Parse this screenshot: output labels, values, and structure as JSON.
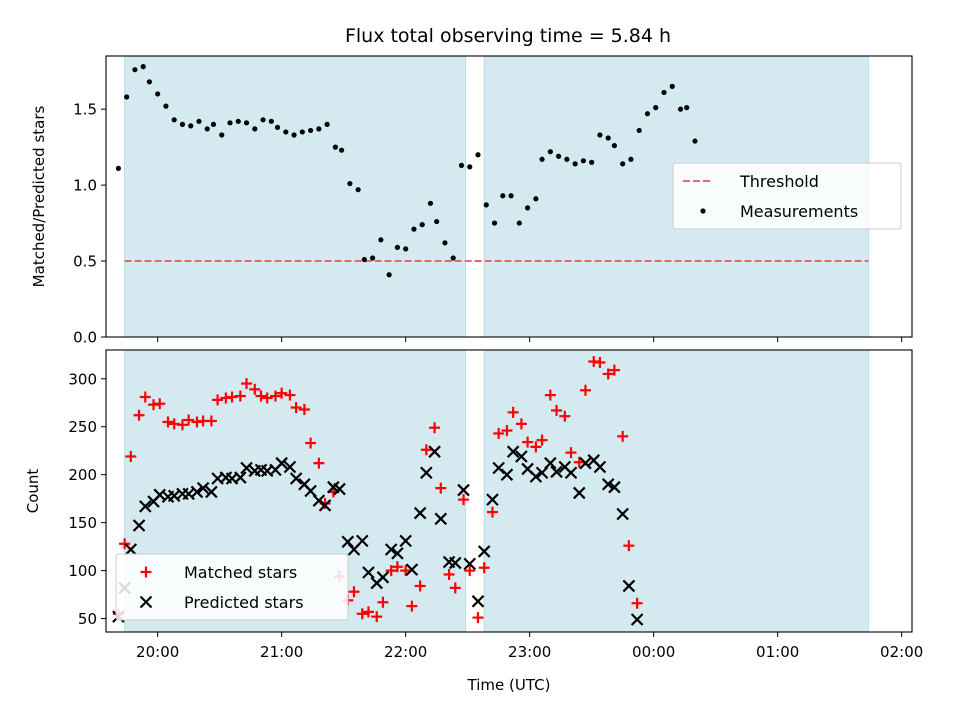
{
  "chart_data": [
    {
      "type": "scatter",
      "title": "Flux total observing time = 5.84 h",
      "xlabel": "",
      "ylabel": "Matched/Predicted stars",
      "xlim": [
        "19:35",
        "02:05"
      ],
      "ylim": [
        0,
        1.85
      ],
      "yticks": [
        0.0,
        0.5,
        1.0,
        1.5
      ],
      "ytick_labels": [
        "0.0",
        "0.5",
        "1.0",
        "1.5"
      ],
      "legend_position": "right",
      "shaded_intervals": [
        [
          "19:44",
          "22:29"
        ],
        [
          "22:38",
          "01:44"
        ]
      ],
      "threshold": {
        "name": "Threshold",
        "value": 0.5,
        "x_range": [
          "19:44",
          "01:44"
        ],
        "color": "#e8686a",
        "style": "dashed"
      },
      "series": [
        {
          "name": "Measurements",
          "color": "#000000",
          "marker": "dot",
          "points": [
            [
              "19:41",
              1.11
            ],
            [
              "19:45",
              1.58
            ],
            [
              "19:49",
              1.76
            ],
            [
              "19:53",
              1.78
            ],
            [
              "19:56",
              1.68
            ],
            [
              "20:00",
              1.6
            ],
            [
              "20:04",
              1.52
            ],
            [
              "20:08",
              1.43
            ],
            [
              "20:12",
              1.4
            ],
            [
              "20:16",
              1.39
            ],
            [
              "20:20",
              1.42
            ],
            [
              "20:24",
              1.37
            ],
            [
              "20:27",
              1.4
            ],
            [
              "20:31",
              1.33
            ],
            [
              "20:35",
              1.41
            ],
            [
              "20:39",
              1.42
            ],
            [
              "20:43",
              1.41
            ],
            [
              "20:47",
              1.37
            ],
            [
              "20:51",
              1.43
            ],
            [
              "20:55",
              1.42
            ],
            [
              "20:58",
              1.38
            ],
            [
              "21:02",
              1.35
            ],
            [
              "21:06",
              1.33
            ],
            [
              "21:10",
              1.35
            ],
            [
              "21:14",
              1.36
            ],
            [
              "21:18",
              1.37
            ],
            [
              "21:22",
              1.4
            ],
            [
              "21:26",
              1.25
            ],
            [
              "21:29",
              1.23
            ],
            [
              "21:33",
              1.01
            ],
            [
              "21:37",
              0.97
            ],
            [
              "21:40",
              0.51
            ],
            [
              "21:44",
              0.52
            ],
            [
              "21:48",
              0.64
            ],
            [
              "21:52",
              0.41
            ],
            [
              "21:56",
              0.59
            ],
            [
              "22:00",
              0.58
            ],
            [
              "22:04",
              0.71
            ],
            [
              "22:08",
              0.74
            ],
            [
              "22:12",
              0.88
            ],
            [
              "22:15",
              0.76
            ],
            [
              "22:19",
              0.62
            ],
            [
              "22:23",
              0.52
            ],
            [
              "22:27",
              1.13
            ],
            [
              "22:31",
              1.12
            ],
            [
              "22:35",
              1.2
            ],
            [
              "22:39",
              0.87
            ],
            [
              "22:43",
              0.75
            ],
            [
              "22:47",
              0.93
            ],
            [
              "22:51",
              0.93
            ],
            [
              "22:55",
              0.75
            ],
            [
              "22:59",
              0.85
            ],
            [
              "23:03",
              0.91
            ],
            [
              "23:06",
              1.17
            ],
            [
              "23:10",
              1.22
            ],
            [
              "23:14",
              1.19
            ],
            [
              "23:18",
              1.17
            ],
            [
              "23:22",
              1.14
            ],
            [
              "23:26",
              1.16
            ],
            [
              "23:30",
              1.15
            ],
            [
              "23:34",
              1.33
            ],
            [
              "23:38",
              1.31
            ],
            [
              "23:41",
              1.26
            ],
            [
              "23:45",
              1.14
            ],
            [
              "23:49",
              1.17
            ],
            [
              "23:53",
              1.36
            ],
            [
              "23:57",
              1.47
            ],
            [
              "00:01",
              1.51
            ],
            [
              "00:05",
              1.61
            ],
            [
              "00:09",
              1.65
            ],
            [
              "00:13",
              1.5
            ],
            [
              "00:16",
              1.51
            ],
            [
              "00:20",
              1.29
            ]
          ]
        }
      ]
    },
    {
      "type": "scatter",
      "title": "",
      "xlabel": "Time (UTC)",
      "ylabel": "Count",
      "xlim": [
        "19:35",
        "02:05"
      ],
      "ylim": [
        36,
        330
      ],
      "yticks": [
        50,
        100,
        150,
        200,
        250,
        300
      ],
      "ytick_labels": [
        "50",
        "100",
        "150",
        "200",
        "250",
        "300"
      ],
      "xticks": [
        "20:00",
        "21:00",
        "22:00",
        "23:00",
        "00:00",
        "01:00",
        "02:00"
      ],
      "legend_position": "lower left",
      "shaded_intervals": [
        [
          "19:44",
          "22:29"
        ],
        [
          "22:38",
          "01:44"
        ]
      ],
      "series": [
        {
          "name": "Matched stars",
          "color": "#ff0000",
          "marker": "plus",
          "points": [
            [
              "19:41",
              55
            ],
            [
              "19:44",
              128
            ],
            [
              "19:47",
              219
            ],
            [
              "19:51",
              262
            ],
            [
              "19:54",
              281
            ],
            [
              "19:58",
              273
            ],
            [
              "20:01",
              274
            ],
            [
              "20:05",
              255
            ],
            [
              "20:08",
              253
            ],
            [
              "20:12",
              252
            ],
            [
              "20:15",
              257
            ],
            [
              "20:19",
              255
            ],
            [
              "20:22",
              256
            ],
            [
              "20:26",
              256
            ],
            [
              "20:29",
              278
            ],
            [
              "20:33",
              280
            ],
            [
              "20:36",
              281
            ],
            [
              "20:40",
              282
            ],
            [
              "20:43",
              295
            ],
            [
              "20:47",
              289
            ],
            [
              "20:50",
              282
            ],
            [
              "20:53",
              280
            ],
            [
              "20:57",
              282
            ],
            [
              "21:00",
              285
            ],
            [
              "21:04",
              283
            ],
            [
              "21:07",
              270
            ],
            [
              "21:11",
              268
            ],
            [
              "21:14",
              233
            ],
            [
              "21:18",
              212
            ],
            [
              "21:21",
              170
            ],
            [
              "21:25",
              182
            ],
            [
              "21:28",
              94
            ],
            [
              "21:32",
              69
            ],
            [
              "21:35",
              78
            ],
            [
              "21:39",
              55
            ],
            [
              "21:42",
              57
            ],
            [
              "21:46",
              52
            ],
            [
              "21:49",
              67
            ],
            [
              "21:53",
              100
            ],
            [
              "21:56",
              104
            ],
            [
              "22:00",
              100
            ],
            [
              "22:03",
              63
            ],
            [
              "22:07",
              84
            ],
            [
              "22:10",
              226
            ],
            [
              "22:14",
              249
            ],
            [
              "22:17",
              186
            ],
            [
              "22:21",
              96
            ],
            [
              "22:24",
              82
            ],
            [
              "22:28",
              174
            ],
            [
              "22:31",
              100
            ],
            [
              "22:35",
              51
            ],
            [
              "22:38",
              103
            ],
            [
              "22:42",
              161
            ],
            [
              "22:45",
              243
            ],
            [
              "22:49",
              246
            ],
            [
              "22:52",
              265
            ],
            [
              "22:56",
              253
            ],
            [
              "22:59",
              234
            ],
            [
              "23:03",
              229
            ],
            [
              "23:06",
              236
            ],
            [
              "23:10",
              283
            ],
            [
              "23:13",
              267
            ],
            [
              "23:17",
              261
            ],
            [
              "23:20",
              223
            ],
            [
              "23:24",
              213
            ],
            [
              "23:27",
              288
            ],
            [
              "23:31",
              318
            ],
            [
              "23:34",
              317
            ],
            [
              "23:38",
              305
            ],
            [
              "23:41",
              309
            ],
            [
              "23:45",
              240
            ],
            [
              "23:48",
              126
            ],
            [
              "23:52",
              66
            ]
          ]
        },
        {
          "name": "Predicted stars",
          "color": "#000000",
          "marker": "x",
          "points": [
            [
              "19:41",
              52
            ],
            [
              "19:44",
              82
            ],
            [
              "19:47",
              122
            ],
            [
              "19:51",
              147
            ],
            [
              "19:54",
              167
            ],
            [
              "19:58",
              172
            ],
            [
              "20:01",
              179
            ],
            [
              "20:05",
              177
            ],
            [
              "20:08",
              178
            ],
            [
              "20:12",
              180
            ],
            [
              "20:15",
              180
            ],
            [
              "20:19",
              182
            ],
            [
              "20:22",
              186
            ],
            [
              "20:26",
              182
            ],
            [
              "20:29",
              196
            ],
            [
              "20:33",
              197
            ],
            [
              "20:36",
              196
            ],
            [
              "20:40",
              197
            ],
            [
              "20:43",
              207
            ],
            [
              "20:47",
              204
            ],
            [
              "20:50",
              205
            ],
            [
              "20:53",
              204
            ],
            [
              "20:57",
              205
            ],
            [
              "21:00",
              212
            ],
            [
              "21:04",
              208
            ],
            [
              "21:07",
              196
            ],
            [
              "21:11",
              190
            ],
            [
              "21:14",
              183
            ],
            [
              "21:18",
              173
            ],
            [
              "21:21",
              168
            ],
            [
              "21:25",
              187
            ],
            [
              "21:28",
              185
            ],
            [
              "21:32",
              130
            ],
            [
              "21:35",
              122
            ],
            [
              "21:39",
              131
            ],
            [
              "21:42",
              98
            ],
            [
              "21:46",
              87
            ],
            [
              "21:49",
              93
            ],
            [
              "21:53",
              122
            ],
            [
              "21:56",
              118
            ],
            [
              "22:00",
              131
            ],
            [
              "22:03",
              101
            ],
            [
              "22:07",
              160
            ],
            [
              "22:10",
              202
            ],
            [
              "22:14",
              224
            ],
            [
              "22:17",
              154
            ],
            [
              "22:21",
              109
            ],
            [
              "22:24",
              108
            ],
            [
              "22:28",
              184
            ],
            [
              "22:31",
              107
            ],
            [
              "22:35",
              68
            ],
            [
              "22:38",
              120
            ],
            [
              "22:42",
              174
            ],
            [
              "22:45",
              207
            ],
            [
              "22:49",
              200
            ],
            [
              "22:52",
              224
            ],
            [
              "22:56",
              219
            ],
            [
              "22:59",
              206
            ],
            [
              "23:03",
              198
            ],
            [
              "23:06",
              202
            ],
            [
              "23:10",
              212
            ],
            [
              "23:13",
              203
            ],
            [
              "23:17",
              208
            ],
            [
              "23:20",
              202
            ],
            [
              "23:24",
              181
            ],
            [
              "23:27",
              212
            ],
            [
              "23:31",
              215
            ],
            [
              "23:34",
              208
            ],
            [
              "23:38",
              190
            ],
            [
              "23:41",
              187
            ],
            [
              "23:45",
              159
            ],
            [
              "23:48",
              84
            ],
            [
              "23:52",
              49
            ]
          ]
        }
      ]
    }
  ],
  "style": {
    "shade_color": "#d4eaf0",
    "shade_edge": "#b9dde5"
  }
}
